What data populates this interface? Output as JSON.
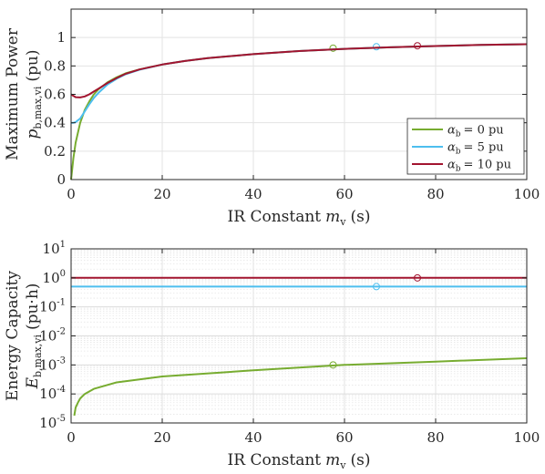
{
  "chart_data": [
    {
      "type": "line",
      "ylabel": "Maximum Power",
      "ysymbol": "p",
      "ysub": "b,max,vi",
      "yunit": "(pu)",
      "xlabel": "IR Constant",
      "xsymbol": "m",
      "xsub": "v",
      "xunit": "(s)",
      "xlim": [
        0,
        100
      ],
      "ylim": [
        0,
        1.2
      ],
      "xticks": [
        "0",
        "20",
        "40",
        "60",
        "80",
        "100"
      ],
      "yticks": [
        "0",
        "0.2",
        "0.4",
        "0.6",
        "0.8",
        "1"
      ],
      "grid": true,
      "legend_position": "bottom-right",
      "series": [
        {
          "name": "α_b = 0 pu",
          "legend_symbol": "α",
          "legend_sub": "b",
          "legend_value": "= 0 pu",
          "color": "#77AC30",
          "x": [
            0,
            0.5,
            1,
            2,
            3,
            4,
            5,
            6,
            8,
            10,
            12,
            15,
            20,
            25,
            30,
            40,
            50,
            60,
            70,
            80,
            90,
            100
          ],
          "y": [
            0,
            0.15,
            0.26,
            0.4,
            0.49,
            0.55,
            0.6,
            0.635,
            0.685,
            0.72,
            0.748,
            0.775,
            0.81,
            0.835,
            0.855,
            0.883,
            0.905,
            0.92,
            0.931,
            0.94,
            0.948,
            0.953
          ],
          "marker": {
            "x": 57.5,
            "y": 0.925
          }
        },
        {
          "name": "α_b = 5 pu",
          "legend_symbol": "α",
          "legend_sub": "b",
          "legend_value": "= 5 pu",
          "color": "#4DBEEE",
          "x": [
            0,
            0.5,
            1,
            2,
            3,
            4,
            5,
            6,
            8,
            10,
            12,
            15,
            20,
            25,
            30,
            40,
            50,
            60,
            70,
            80,
            90,
            100
          ],
          "y": [
            0.4,
            0.4,
            0.405,
            0.43,
            0.48,
            0.53,
            0.575,
            0.61,
            0.67,
            0.71,
            0.742,
            0.773,
            0.81,
            0.835,
            0.855,
            0.883,
            0.905,
            0.92,
            0.931,
            0.94,
            0.948,
            0.953
          ],
          "marker": {
            "x": 67,
            "y": 0.935
          }
        },
        {
          "name": "α_b = 10 pu",
          "legend_symbol": "α",
          "legend_sub": "b",
          "legend_value": "= 10 pu",
          "color": "#A2142F",
          "x": [
            0,
            0.5,
            1,
            2,
            3,
            4,
            5,
            6,
            8,
            10,
            12,
            15,
            20,
            25,
            30,
            40,
            50,
            60,
            70,
            80,
            90,
            100
          ],
          "y": [
            0.6,
            0.59,
            0.58,
            0.578,
            0.585,
            0.6,
            0.62,
            0.64,
            0.68,
            0.715,
            0.745,
            0.775,
            0.81,
            0.835,
            0.855,
            0.883,
            0.905,
            0.92,
            0.931,
            0.94,
            0.948,
            0.953
          ],
          "marker": {
            "x": 76,
            "y": 0.942
          }
        }
      ]
    },
    {
      "type": "line",
      "ylabel": "Energy Capacity",
      "ysymbol": "E",
      "ysub": "b,max,vi",
      "yunit": "(pu·h)",
      "xlabel": "IR Constant",
      "xsymbol": "m",
      "xsub": "v",
      "xunit": "(s)",
      "xlim": [
        0,
        100
      ],
      "ylim_exp": [
        -5,
        1
      ],
      "yscale": "log",
      "xticks": [
        "0",
        "20",
        "40",
        "60",
        "80",
        "100"
      ],
      "yticks": [
        {
          "base": "10",
          "exp": "1"
        },
        {
          "base": "10",
          "exp": "0"
        },
        {
          "base": "10",
          "exp": "-1"
        },
        {
          "base": "10",
          "exp": "-2"
        },
        {
          "base": "10",
          "exp": "-3"
        },
        {
          "base": "10",
          "exp": "-4"
        },
        {
          "base": "10",
          "exp": "-5"
        }
      ],
      "grid": true,
      "series": [
        {
          "name": "α_b = 0 pu",
          "color": "#77AC30",
          "x": [
            0.7,
            1,
            1.5,
            2,
            3,
            5,
            10,
            20,
            40,
            60,
            80,
            100
          ],
          "y": [
            1.8e-05,
            3.4e-05,
            5e-05,
            7e-05,
            0.0001,
            0.00015,
            0.00025,
            0.0004,
            0.00065,
            0.001,
            0.0013,
            0.0017
          ],
          "marker": {
            "x": 57.5,
            "y": 0.001
          }
        },
        {
          "name": "α_b = 5 pu",
          "color": "#4DBEEE",
          "x": [
            0,
            100
          ],
          "y": [
            0.5,
            0.5
          ],
          "marker": {
            "x": 67,
            "y": 0.5
          }
        },
        {
          "name": "α_b = 10 pu",
          "color": "#A2142F",
          "x": [
            0,
            100
          ],
          "y": [
            1,
            1
          ],
          "marker": {
            "x": 76,
            "y": 1
          }
        }
      ]
    }
  ]
}
